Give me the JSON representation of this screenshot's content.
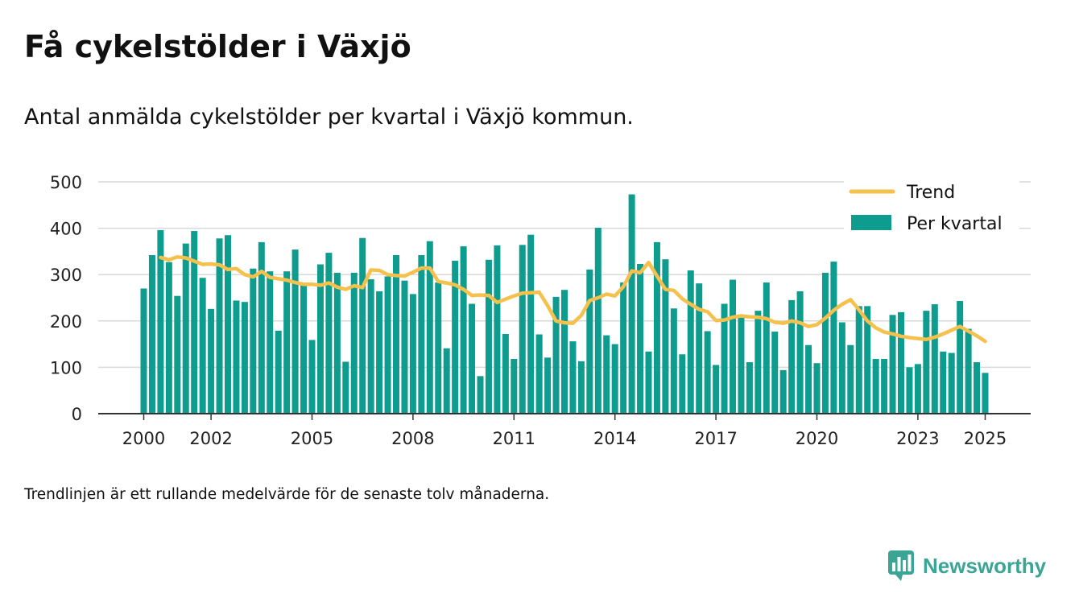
{
  "page": {
    "title": "Få cykelstölder i Växjö",
    "subtitle": "Antal anmälda cykelstölder per kvartal i Växjö kommun.",
    "footnote": "Trendlinjen är ett rullande medelvärde för de senaste tolv månaderna.",
    "brand": "Newsworthy"
  },
  "colors": {
    "bar": "#0e9c8e",
    "trend": "#f6c04d",
    "grid": "#d9d9d9",
    "axis": "#333333",
    "brand": "#3aa595"
  },
  "icons": {
    "brand_logo": "bar-chart-speech-bubble-icon"
  },
  "chart_data": {
    "type": "bar",
    "title": "Få cykelstölder i Växjö",
    "subtitle": "Antal anmälda cykelstölder per kvartal i Växjö kommun.",
    "xlabel": "",
    "ylabel": "",
    "ylim": [
      0,
      500
    ],
    "yticks": [
      0,
      100,
      200,
      300,
      400,
      500
    ],
    "xticks": [
      "2000",
      "2002",
      "2005",
      "2008",
      "2011",
      "2014",
      "2017",
      "2020",
      "2023",
      "2025"
    ],
    "xtick_positions": [
      2000,
      2002,
      2005,
      2008,
      2011,
      2014,
      2017,
      2020,
      2023,
      2025
    ],
    "x_start": 2000,
    "grid": true,
    "legend_position": "top-right",
    "series": [
      {
        "name": "Per kvartal",
        "type": "bar",
        "values": [
          270,
          342,
          396,
          327,
          254,
          367,
          394,
          293,
          226,
          378,
          385,
          244,
          241,
          313,
          370,
          307,
          179,
          307,
          354,
          281,
          159,
          322,
          347,
          304,
          112,
          304,
          379,
          290,
          264,
          296,
          342,
          287,
          258,
          342,
          372,
          283,
          141,
          330,
          361,
          237,
          81,
          332,
          363,
          172,
          118,
          364,
          386,
          171,
          121,
          252,
          267,
          156,
          113,
          311,
          401,
          169,
          150,
          283,
          473,
          323,
          134,
          370,
          333,
          227,
          128,
          309,
          281,
          178,
          105,
          237,
          289,
          214,
          111,
          222,
          283,
          177,
          94,
          245,
          264,
          148,
          109,
          304,
          328,
          197,
          148,
          232,
          232,
          118,
          118,
          213,
          219,
          100,
          107,
          222,
          236,
          134,
          131,
          243,
          183,
          111,
          88
        ]
      },
      {
        "name": "Trend",
        "type": "line",
        "x": [
          2000.5,
          2000.75,
          2001,
          2001.25,
          2001.5,
          2001.75,
          2002,
          2002.25,
          2002.5,
          2002.75,
          2003,
          2003.25,
          2003.5,
          2003.75,
          2004,
          2004.25,
          2004.5,
          2004.75,
          2005,
          2005.25,
          2005.5,
          2005.75,
          2006,
          2006.25,
          2006.5,
          2006.75,
          2007,
          2007.25,
          2007.5,
          2007.75,
          2008,
          2008.25,
          2008.5,
          2008.75,
          2009,
          2009.25,
          2009.5,
          2009.75,
          2010,
          2010.25,
          2010.5,
          2010.75,
          2011,
          2011.25,
          2011.5,
          2011.75,
          2012,
          2012.25,
          2012.5,
          2012.75,
          2013,
          2013.25,
          2013.5,
          2013.75,
          2014,
          2014.25,
          2014.5,
          2014.75,
          2015,
          2015.25,
          2015.5,
          2015.75,
          2016,
          2016.25,
          2016.5,
          2016.75,
          2017,
          2017.25,
          2017.5,
          2017.75,
          2018,
          2018.25,
          2018.5,
          2018.75,
          2019,
          2019.25,
          2019.5,
          2019.75,
          2020,
          2020.25,
          2020.5,
          2020.75,
          2021,
          2021.25,
          2021.5,
          2021.75,
          2022,
          2022.25,
          2022.5,
          2022.75,
          2023,
          2023.25,
          2023.5,
          2023.75,
          2024,
          2024.25,
          2024.5,
          2024.75,
          2025
        ],
        "values": [
          337,
          332,
          338,
          336,
          329,
          322,
          323,
          321,
          311,
          313,
          300,
          295,
          307,
          294,
          291,
          288,
          283,
          279,
          279,
          277,
          282,
          273,
          268,
          276,
          272,
          310,
          309,
          300,
          298,
          297,
          305,
          314,
          314,
          285,
          282,
          278,
          268,
          255,
          256,
          255,
          240,
          247,
          254,
          260,
          261,
          262,
          233,
          200,
          196,
          195,
          212,
          244,
          250,
          258,
          254,
          274,
          308,
          304,
          326,
          297,
          268,
          266,
          248,
          236,
          225,
          220,
          201,
          202,
          208,
          211,
          209,
          208,
          205,
          197,
          195,
          200,
          196,
          188,
          192,
          206,
          223,
          236,
          246,
          224,
          200,
          185,
          176,
          172,
          167,
          164,
          162,
          160,
          165,
          172,
          180,
          188,
          178,
          168,
          156
        ]
      }
    ]
  }
}
